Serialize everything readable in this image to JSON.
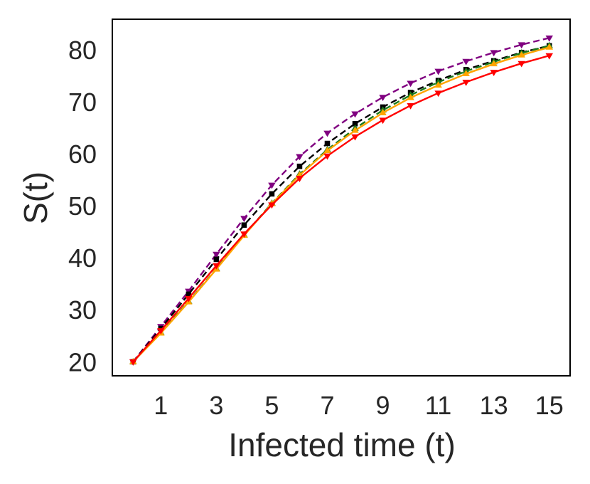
{
  "chart_data": {
    "type": "line",
    "title": "",
    "xlabel": "Infected time (t)",
    "ylabel": "S(t)",
    "xlim": [
      -0.75,
      15.75
    ],
    "ylim": [
      17.3,
      85.9
    ],
    "xticks": [
      1,
      3,
      5,
      7,
      9,
      11,
      13,
      15
    ],
    "yticks": [
      20,
      30,
      40,
      50,
      60,
      70,
      80
    ],
    "grid": false,
    "legend": "none",
    "x": [
      0,
      1,
      2,
      3,
      4,
      5,
      6,
      7,
      8,
      9,
      10,
      11,
      12,
      13,
      14,
      15
    ],
    "series": [
      {
        "name": "purple",
        "color": "#800080",
        "dash": "dashed",
        "marker": "triangle-down",
        "values": [
          20.0,
          26.8,
          33.6,
          40.7,
          47.6,
          54.0,
          59.5,
          64.0,
          67.7,
          70.9,
          73.6,
          75.9,
          77.8,
          79.5,
          81.0,
          82.3
        ]
      },
      {
        "name": "black",
        "color": "#000000",
        "dash": "dashed",
        "marker": "square",
        "values": [
          20.0,
          26.4,
          33.0,
          39.7,
          46.3,
          52.3,
          57.6,
          62.0,
          65.8,
          69.0,
          71.8,
          74.1,
          76.2,
          77.9,
          79.5,
          80.8
        ]
      },
      {
        "name": "green",
        "color": "#1b7a1b",
        "dash": "dashed",
        "marker": "triangle-up",
        "values": [
          20.0,
          25.6,
          31.6,
          37.9,
          44.4,
          50.5,
          56.1,
          60.8,
          64.9,
          68.4,
          71.3,
          73.8,
          75.9,
          77.7,
          79.4,
          80.8
        ]
      },
      {
        "name": "orange",
        "color": "#ffa500",
        "dash": "solid",
        "marker": "triangle-up",
        "values": [
          20.0,
          25.5,
          31.5,
          37.8,
          44.3,
          50.4,
          55.9,
          60.6,
          64.5,
          67.9,
          70.8,
          73.2,
          75.4,
          77.3,
          79.0,
          80.5
        ]
      },
      {
        "name": "red",
        "color": "#ff0000",
        "dash": "solid",
        "marker": "triangle-down",
        "values": [
          20.0,
          26.0,
          32.2,
          38.5,
          44.6,
          50.2,
          55.3,
          59.6,
          63.3,
          66.5,
          69.3,
          71.7,
          73.8,
          75.7,
          77.4,
          78.9
        ]
      }
    ]
  }
}
